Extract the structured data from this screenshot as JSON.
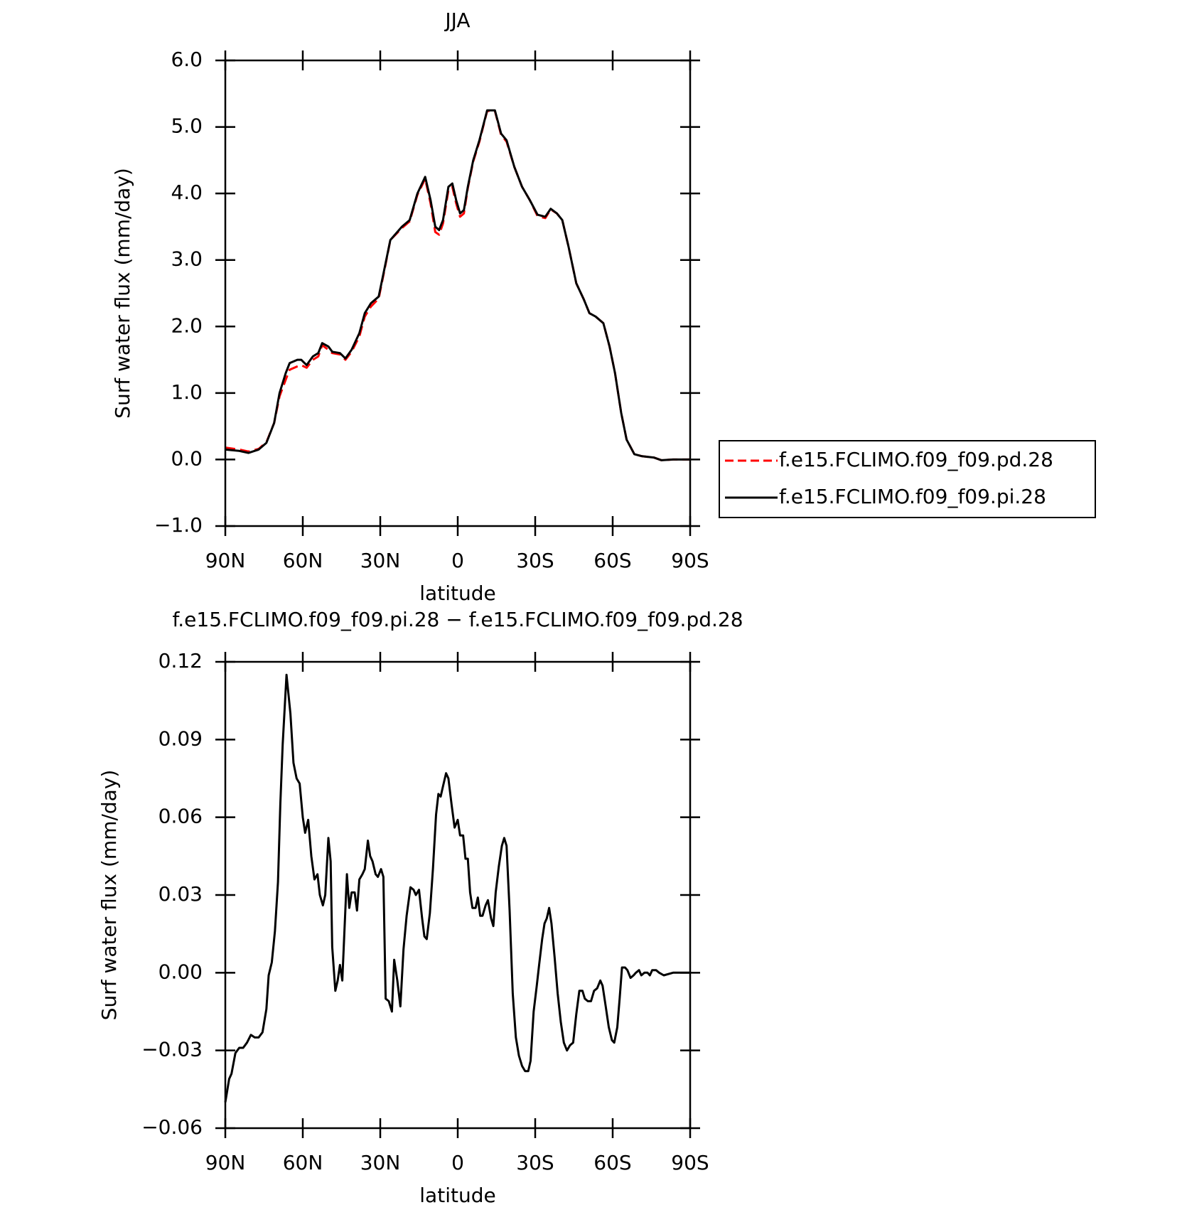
{
  "chart_data": [
    {
      "type": "line",
      "title": "JJA",
      "xlabel": "latitude",
      "ylabel": "Surf water flux (mm/day)",
      "xlim": [
        90,
        -90
      ],
      "ylim": [
        -1,
        6
      ],
      "xticks": [
        {
          "value": 90,
          "label": "90N"
        },
        {
          "value": 60,
          "label": "60N"
        },
        {
          "value": 30,
          "label": "30N"
        },
        0,
        {
          "value": -30,
          "label": "30S"
        },
        {
          "value": -60,
          "label": "60S"
        },
        {
          "value": -90,
          "label": "90S"
        }
      ],
      "yticks": [
        {
          "value": -1,
          "label": "−1.0"
        },
        {
          "value": 0,
          "label": "0.0"
        },
        {
          "value": 1,
          "label": "1.0"
        },
        {
          "value": 2,
          "label": "2.0"
        },
        {
          "value": 3,
          "label": "3.0"
        },
        {
          "value": 4,
          "label": "4.0"
        },
        {
          "value": 5,
          "label": "5.0"
        },
        {
          "value": 6,
          "label": "6.0"
        }
      ],
      "legend": "right",
      "x": [
        90,
        84.6,
        81,
        77.1,
        74.1,
        71.1,
        69,
        66.6,
        65.1,
        62.1,
        60.6,
        58.5,
        56.1,
        54,
        52.5,
        50.1,
        48.6,
        45.6,
        43.5,
        41.1,
        38.1,
        36,
        33.6,
        30.6,
        28.2,
        26.1,
        21.6,
        18.6,
        15.6,
        12.6,
        10.5,
        8.7,
        7.2,
        5.7,
        3.6,
        2.1,
        0.6,
        -0.9,
        -2.4,
        -3.9,
        -6,
        -8.4,
        -11.4,
        -14.4,
        -16.8,
        -18.9,
        -21.9,
        -24.9,
        -27.9,
        -30.9,
        -33.9,
        -36,
        -38.4,
        -40.5,
        -42.9,
        -45.9,
        -48.9,
        -51,
        -53.4,
        -56.4,
        -58.8,
        -60.9,
        -63.3,
        -65.4,
        -68.4,
        -71.4,
        -75.9,
        -78.9,
        -83.4,
        -90
      ],
      "series": [
        {
          "name": "f.e15.FCLIMO.f09_f09.pd.28",
          "color": "#ff0000",
          "dashed": true,
          "values": [
            0.18,
            0.15,
            0.12,
            0.16,
            0.26,
            0.55,
            0.95,
            1.2,
            1.35,
            1.4,
            1.42,
            1.38,
            1.5,
            1.55,
            1.72,
            1.65,
            1.6,
            1.58,
            1.5,
            1.62,
            1.85,
            2.15,
            2.3,
            2.42,
            2.88,
            3.3,
            3.48,
            3.58,
            3.98,
            4.22,
            3.85,
            3.42,
            3.38,
            3.55,
            4.05,
            4.1,
            3.85,
            3.65,
            3.7,
            4.08,
            4.48,
            4.78,
            5.24,
            5.24,
            4.88,
            4.78,
            4.4,
            4.1,
            3.9,
            3.66,
            3.63,
            3.76,
            3.7,
            3.6,
            3.2,
            2.65,
            2.4,
            2.2,
            2.15,
            2.05,
            1.7,
            1.3,
            0.7,
            0.3,
            0.08,
            0.05,
            0.03,
            -0.01,
            0,
            0
          ]
        },
        {
          "name": "f.e15.FCLIMO.f09_f09.pi.28",
          "color": "#000000",
          "dashed": false,
          "values": [
            0.15,
            0.13,
            0.1,
            0.15,
            0.25,
            0.55,
            1.0,
            1.3,
            1.45,
            1.5,
            1.5,
            1.42,
            1.55,
            1.6,
            1.75,
            1.7,
            1.62,
            1.6,
            1.52,
            1.65,
            1.9,
            2.2,
            2.35,
            2.45,
            2.9,
            3.3,
            3.5,
            3.6,
            4.0,
            4.25,
            3.9,
            3.5,
            3.45,
            3.6,
            4.1,
            4.15,
            3.9,
            3.7,
            3.75,
            4.1,
            4.5,
            4.8,
            5.25,
            5.25,
            4.9,
            4.8,
            4.4,
            4.1,
            3.9,
            3.68,
            3.65,
            3.77,
            3.7,
            3.6,
            3.2,
            2.65,
            2.4,
            2.2,
            2.15,
            2.05,
            1.7,
            1.3,
            0.7,
            0.3,
            0.08,
            0.05,
            0.03,
            -0.01,
            0,
            0
          ]
        }
      ]
    },
    {
      "type": "line",
      "title": "f.e15.FCLIMO.f09_f09.pi.28 − f.e15.FCLIMO.f09_f09.pd.28",
      "xlabel": "latitude",
      "ylabel": "Surf water flux (mm/day)",
      "xlim": [
        90,
        -90
      ],
      "ylim": [
        -0.06,
        0.12
      ],
      "xticks": [
        {
          "value": 90,
          "label": "90N"
        },
        {
          "value": 60,
          "label": "60N"
        },
        {
          "value": 30,
          "label": "30N"
        },
        0,
        {
          "value": -30,
          "label": "30S"
        },
        {
          "value": -60,
          "label": "60S"
        },
        {
          "value": -90,
          "label": "90S"
        }
      ],
      "yticks": [
        {
          "value": -0.06,
          "label": "−0.06"
        },
        {
          "value": -0.03,
          "label": "−0.03"
        },
        {
          "value": 0,
          "label": "0.00"
        },
        {
          "value": 0.03,
          "label": "0.03"
        },
        {
          "value": 0.06,
          "label": "0.06"
        },
        {
          "value": 0.09,
          "label": "0.09"
        },
        {
          "value": 0.12,
          "label": "0.12"
        }
      ],
      "x": [
        90,
        88.5,
        87.6,
        86.1,
        84.6,
        83.1,
        81.6,
        80.1,
        78.6,
        77.1,
        75.6,
        74.1,
        73.2,
        72,
        70.8,
        69.6,
        68.7,
        67.8,
        66.3,
        64.8,
        63.6,
        62.4,
        61.2,
        60,
        59.1,
        57.9,
        56.7,
        55.5,
        54.3,
        53.4,
        52.2,
        51.3,
        50.1,
        49.2,
        48.6,
        47.4,
        46.5,
        45.6,
        44.7,
        43.8,
        42.9,
        42,
        41.1,
        39.9,
        39,
        38.1,
        36.9,
        36,
        34.8,
        33.9,
        33,
        31.8,
        30.9,
        29.7,
        28.8,
        27.9,
        26.7,
        25.5,
        24.6,
        23.4,
        22.2,
        21,
        19.8,
        18.3,
        17.1,
        16.2,
        15,
        13.8,
        12.9,
        12,
        10.8,
        9.6,
        8.4,
        7.5,
        6.6,
        5.7,
        4.5,
        3.6,
        2.4,
        1.2,
        0,
        -0.9,
        -2.1,
        -3,
        -3.9,
        -4.8,
        -5.7,
        -6.9,
        -7.8,
        -8.7,
        -9.6,
        -10.8,
        -11.7,
        -12.9,
        -13.8,
        -14.7,
        -15.9,
        -17.1,
        -18,
        -18.9,
        -20.1,
        -21.3,
        -22.5,
        -23.7,
        -24.9,
        -26.1,
        -27.3,
        -28.2,
        -29.4,
        -30.6,
        -31.5,
        -32.7,
        -33.6,
        -34.5,
        -35.4,
        -36.3,
        -37.5,
        -38.7,
        -39.9,
        -41.1,
        -42.3,
        -43.5,
        -44.7,
        -45.9,
        -47.1,
        -48.3,
        -49.2,
        -50.4,
        -51.6,
        -52.8,
        -54,
        -55.2,
        -56.1,
        -57.3,
        -58.5,
        -59.7,
        -60.6,
        -61.8,
        -62.7,
        -63.6,
        -64.8,
        -65.7,
        -66.9,
        -68.1,
        -69,
        -70.2,
        -71.1,
        -72.3,
        -73.5,
        -74.4,
        -75.3,
        -76.8,
        -78,
        -79.8,
        -83.4,
        -90
      ],
      "series": [
        {
          "color": "#000000",
          "dashed": false,
          "values": [
            -0.05,
            -0.041,
            -0.039,
            -0.031,
            -0.029,
            -0.029,
            -0.027,
            -0.024,
            -0.025,
            -0.025,
            -0.023,
            -0.014,
            -0.001,
            0.004,
            0.016,
            0.035,
            0.065,
            0.088,
            0.115,
            0.1,
            0.081,
            0.075,
            0.073,
            0.06,
            0.054,
            0.059,
            0.045,
            0.036,
            0.038,
            0.03,
            0.026,
            0.03,
            0.052,
            0.043,
            0.01,
            -0.007,
            -0.003,
            0.003,
            -0.003,
            0.018,
            0.038,
            0.025,
            0.031,
            0.031,
            0.024,
            0.036,
            0.038,
            0.04,
            0.051,
            0.045,
            0.043,
            0.038,
            0.037,
            0.04,
            0.037,
            -0.01,
            -0.011,
            -0.015,
            0.005,
            -0.003,
            -0.013,
            0.009,
            0.022,
            0.033,
            0.032,
            0.03,
            0.032,
            0.021,
            0.014,
            0.013,
            0.023,
            0.04,
            0.061,
            0.069,
            0.068,
            0.072,
            0.077,
            0.075,
            0.065,
            0.056,
            0.059,
            0.053,
            0.053,
            0.044,
            0.044,
            0.031,
            0.025,
            0.025,
            0.029,
            0.022,
            0.022,
            0.026,
            0.028,
            0.021,
            0.018,
            0.031,
            0.041,
            0.049,
            0.052,
            0.049,
            0.024,
            -0.008,
            -0.025,
            -0.032,
            -0.036,
            -0.038,
            -0.038,
            -0.034,
            -0.015,
            -0.005,
            0.003,
            0.013,
            0.019,
            0.021,
            0.025,
            0.019,
            0.006,
            -0.008,
            -0.019,
            -0.027,
            -0.03,
            -0.028,
            -0.027,
            -0.016,
            -0.007,
            -0.007,
            -0.01,
            -0.011,
            -0.011,
            -0.007,
            -0.006,
            -0.003,
            -0.005,
            -0.013,
            -0.021,
            -0.026,
            -0.027,
            -0.021,
            -0.01,
            0.002,
            0.002,
            0.001,
            -0.002,
            -0.001,
            0.0,
            0.001,
            -0.001,
            0.0,
            0.0,
            -0.001,
            0.001,
            0.001,
            0.0,
            -0.001,
            0.0,
            0.0
          ]
        }
      ]
    }
  ]
}
